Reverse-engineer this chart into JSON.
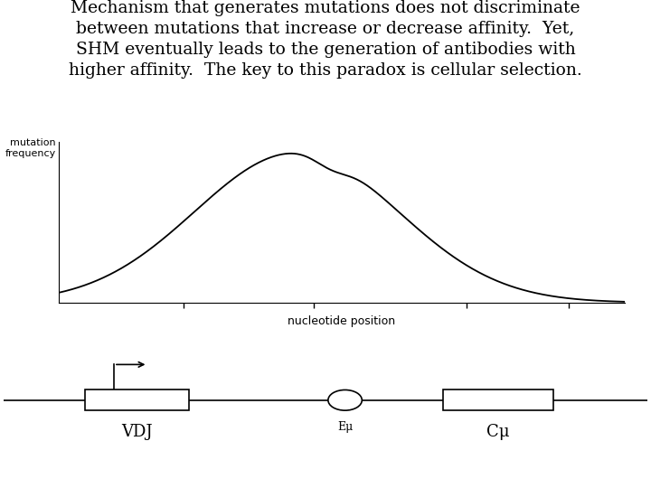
{
  "title_lines": [
    "Mechanism that generates mutations does not discriminate",
    "between mutations that increase or decrease affinity.  Yet,",
    "SHM eventually leads to the generation of antibodies with",
    "higher affinity.  The key to this paradox is cellular selection."
  ],
  "text_fontsize": 13.5,
  "background_color": "#ffffff",
  "curve_color": "#000000",
  "ylabel": "mutation\nfrequency",
  "xlabel": "nucleotide position",
  "gene_labels": [
    "VDJ",
    "Eμ",
    "Cμ"
  ],
  "gene_label_fontsize": 13
}
